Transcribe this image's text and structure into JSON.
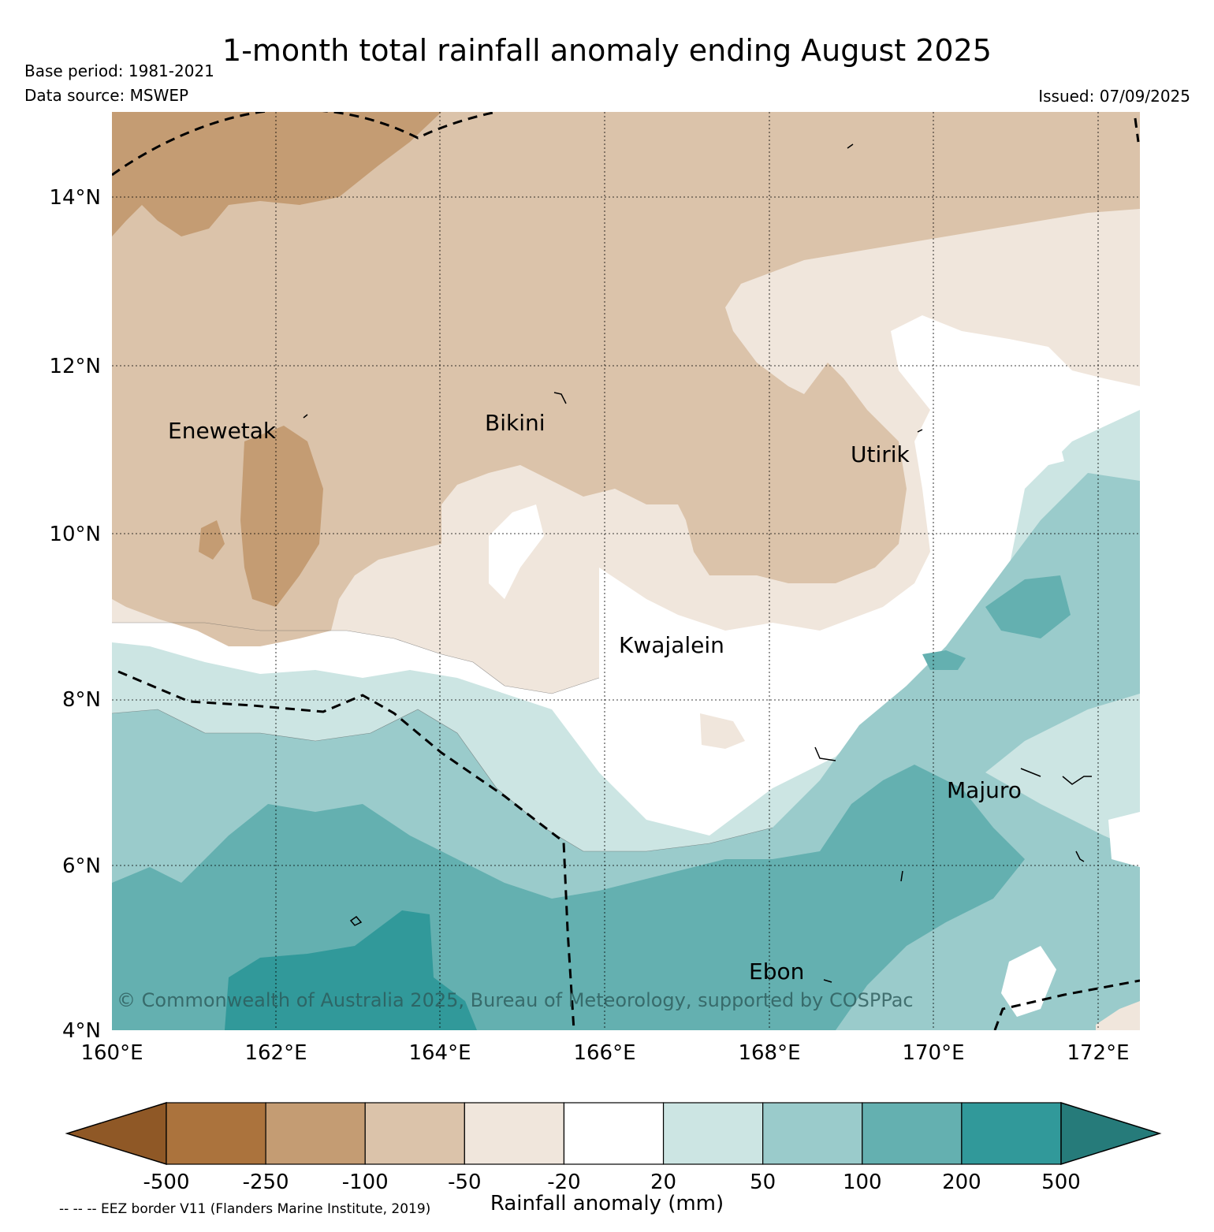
{
  "header": {
    "title": "1-month total rainfall anomaly ending August 2025",
    "base_period": "Base period: 1981-2021",
    "data_source": "Data source: MSWEP",
    "issued": "Issued: 07/09/2025"
  },
  "map": {
    "lon_range": [
      160,
      172.5
    ],
    "lat_range": [
      4,
      15
    ],
    "lon_ticks": [
      "160°E",
      "162°E",
      "164°E",
      "166°E",
      "168°E",
      "170°E",
      "172°E"
    ],
    "lat_ticks": [
      "4°N",
      "6°N",
      "8°N",
      "10°N",
      "12°N",
      "14°N"
    ],
    "places": [
      {
        "name": "Enewetak"
      },
      {
        "name": "Bikini"
      },
      {
        "name": "Utirik"
      },
      {
        "name": "Kwajalein"
      },
      {
        "name": "Majuro"
      },
      {
        "name": "Ebon"
      }
    ],
    "copyright": "© Commonwealth of Australia 2025, Bureau of Meteorology, supported by COSPPac"
  },
  "colorbar": {
    "title": "Rainfall anomaly (mm)",
    "tick_labels": [
      "-500",
      "-250",
      "-100",
      "-50",
      "-20",
      "20",
      "50",
      "100",
      "200",
      "500"
    ],
    "colors": [
      "#8f5826",
      "#ab733d",
      "#c49c73",
      "#dbc3aa",
      "#f0e6dc",
      "#ffffff",
      "#cce5e3",
      "#9acbcb",
      "#64b0b0",
      "#31999a",
      "#267b7a"
    ]
  },
  "footnote": "-- -- -- EEZ border V11 (Flanders Marine Institute, 2019)"
}
